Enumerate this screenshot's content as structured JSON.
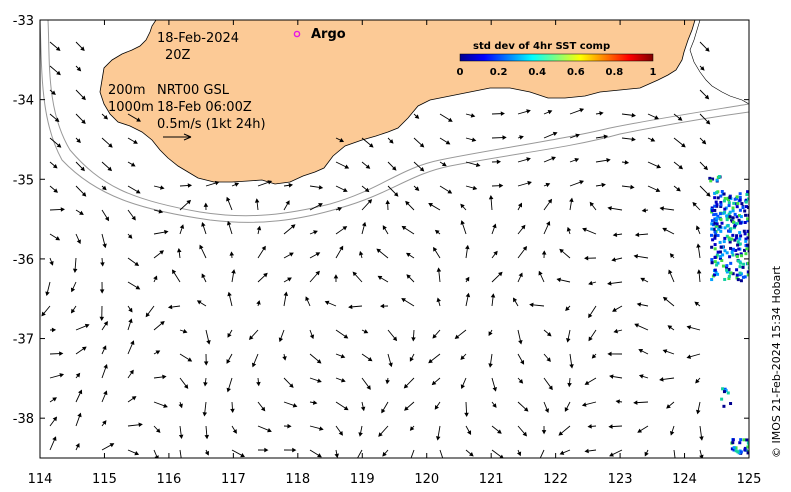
{
  "map": {
    "date_label": "18-Feb-2024",
    "time_label": "20Z",
    "depth_label_1": "200m",
    "depth_label_2": "1000m",
    "product_label": "NRT00 GSL",
    "product_time_label": "18-Feb 06:00Z",
    "scale_label": "0.5m/s (1kt 24h)",
    "legend_argo": "Argo",
    "argo_color": "#e619e6",
    "land_color": "#fcca96",
    "colorbar": {
      "title": "std dev of 4hr SST comp",
      "ticks": [
        "0",
        "0.2",
        "0.4",
        "0.6",
        "0.8",
        "1"
      ],
      "colormap": "jet"
    },
    "credit": "© IMOS 21-Feb-2024 15:34 Hobart",
    "x_axis": {
      "ticks": [
        "114",
        "115",
        "116",
        "117",
        "118",
        "119",
        "120",
        "121",
        "122",
        "123",
        "124",
        "125"
      ],
      "range": [
        114,
        125
      ]
    },
    "y_axis": {
      "ticks": [
        "-33",
        "-34",
        "-35",
        "-36",
        "-37",
        "-38"
      ],
      "range": [
        -38.5,
        -33
      ]
    },
    "arrow_icon": "current-vector-arrow"
  }
}
